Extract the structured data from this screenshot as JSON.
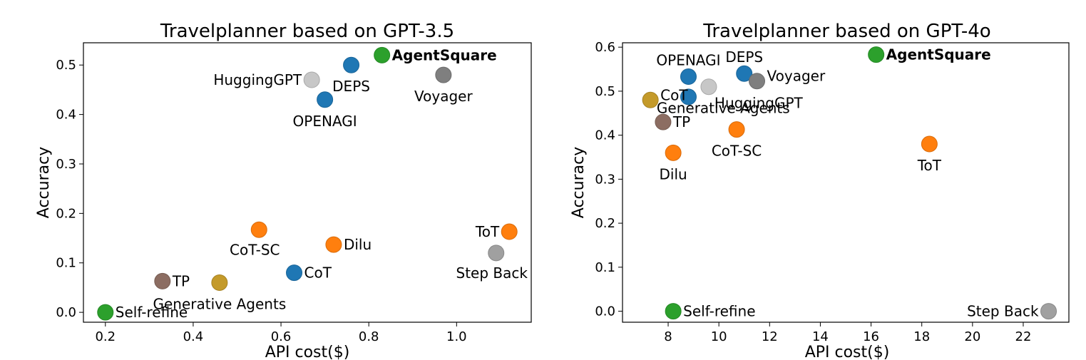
{
  "chart_data": [
    {
      "type": "scatter",
      "title": "Travelplanner based on GPT-3.5",
      "xlabel": "API cost($)",
      "ylabel": "Accuracy",
      "xlim": [
        0.15,
        1.17
      ],
      "ylim": [
        -0.02,
        0.545
      ],
      "xticks": [
        0.2,
        0.4,
        0.6,
        0.8,
        1.0
      ],
      "xtick_labels": [
        "0.2",
        "0.4",
        "0.6",
        "0.8",
        "1.0"
      ],
      "yticks": [
        0.0,
        0.1,
        0.2,
        0.3,
        0.4,
        0.5
      ],
      "ytick_labels": [
        "0.0",
        "0.1",
        "0.2",
        "0.3",
        "0.4",
        "0.5"
      ],
      "grid": false,
      "points": [
        {
          "label": "AgentSquare",
          "x": 0.83,
          "y": 0.52,
          "color": "#2ca02c",
          "bold": true,
          "anchor": "right"
        },
        {
          "label": "DEPS",
          "x": 0.76,
          "y": 0.5,
          "color": "#1f77b4",
          "anchor": "below"
        },
        {
          "label": "HuggingGPT",
          "x": 0.67,
          "y": 0.47,
          "color": "#c7c7c7",
          "anchor": "left"
        },
        {
          "label": "Voyager",
          "x": 0.97,
          "y": 0.48,
          "color": "#7f7f7f",
          "anchor": "below"
        },
        {
          "label": "OPENAGI",
          "x": 0.7,
          "y": 0.43,
          "color": "#1f77b4",
          "anchor": "below"
        },
        {
          "label": "CoT-SC",
          "x": 0.55,
          "y": 0.167,
          "color": "#ff7f0e",
          "anchor": "below-left"
        },
        {
          "label": "Dilu",
          "x": 0.72,
          "y": 0.137,
          "color": "#ff7f0e",
          "anchor": "right"
        },
        {
          "label": "ToT",
          "x": 1.12,
          "y": 0.163,
          "color": "#ff7f0e",
          "anchor": "left"
        },
        {
          "label": "Step Back",
          "x": 1.09,
          "y": 0.12,
          "color": "#a0a0a0",
          "anchor": "below-left"
        },
        {
          "label": "CoT",
          "x": 0.63,
          "y": 0.08,
          "color": "#1f77b4",
          "anchor": "right"
        },
        {
          "label": "TP",
          "x": 0.33,
          "y": 0.063,
          "color": "#8c6d62",
          "anchor": "right"
        },
        {
          "label": "Generative Agents",
          "x": 0.46,
          "y": 0.06,
          "color": "#c49a2a",
          "anchor": "below"
        },
        {
          "label": "Self-refine",
          "x": 0.2,
          "y": 0.0,
          "color": "#2ca02c",
          "anchor": "right"
        }
      ]
    },
    {
      "type": "scatter",
      "title": "Travelplanner based on GPT-4o",
      "xlabel": "API cost($)",
      "ylabel": "Accuracy",
      "xlim": [
        6.2,
        23.8
      ],
      "ylim": [
        -0.025,
        0.61
      ],
      "xticks": [
        8,
        10,
        12,
        14,
        16,
        18,
        20,
        22
      ],
      "xtick_labels": [
        "8",
        "10",
        "12",
        "14",
        "16",
        "18",
        "20",
        "22"
      ],
      "yticks": [
        0.0,
        0.1,
        0.2,
        0.3,
        0.4,
        0.5,
        0.6
      ],
      "ytick_labels": [
        "0.0",
        "0.1",
        "0.2",
        "0.3",
        "0.4",
        "0.5",
        "0.6"
      ],
      "grid": false,
      "points": [
        {
          "label": "AgentSquare",
          "x": 16.2,
          "y": 0.583,
          "color": "#2ca02c",
          "bold": true,
          "anchor": "right"
        },
        {
          "label": "DEPS",
          "x": 11.0,
          "y": 0.54,
          "color": "#1f77b4",
          "anchor": "above"
        },
        {
          "label": "Voyager",
          "x": 11.5,
          "y": 0.523,
          "color": "#7f7f7f",
          "anchor": "right-up"
        },
        {
          "label": "OPENAGI",
          "x": 8.8,
          "y": 0.533,
          "color": "#1f77b4",
          "anchor": "above"
        },
        {
          "label": "HuggingGPT",
          "x": 9.6,
          "y": 0.51,
          "color": "#c7c7c7",
          "anchor": "below-right"
        },
        {
          "label": "CoT",
          "x": 8.8,
          "y": 0.487,
          "color": "#1f77b4",
          "anchor": "none"
        },
        {
          "label": "CoT",
          "x": 7.3,
          "y": 0.48,
          "color": "#c49a2a",
          "anchor": "right-up"
        },
        {
          "label": "Generative Agents",
          "x": 7.8,
          "y": 0.47,
          "color": "#c49a2a",
          "anchor": "below-right-generative",
          "hidden_marker": true
        },
        {
          "label": "TP",
          "x": 7.8,
          "y": 0.43,
          "color": "#8c6d62",
          "anchor": "right"
        },
        {
          "label": "CoT-SC",
          "x": 10.7,
          "y": 0.413,
          "color": "#ff7f0e",
          "anchor": "below"
        },
        {
          "label": "Dilu",
          "x": 8.2,
          "y": 0.36,
          "color": "#ff7f0e",
          "anchor": "below"
        },
        {
          "label": "ToT",
          "x": 18.3,
          "y": 0.38,
          "color": "#ff7f0e",
          "anchor": "below"
        },
        {
          "label": "Self-refine",
          "x": 8.2,
          "y": 0.0,
          "color": "#2ca02c",
          "anchor": "right"
        },
        {
          "label": "Step Back",
          "x": 23.0,
          "y": 0.0,
          "color": "#a0a0a0",
          "anchor": "left"
        }
      ]
    }
  ]
}
